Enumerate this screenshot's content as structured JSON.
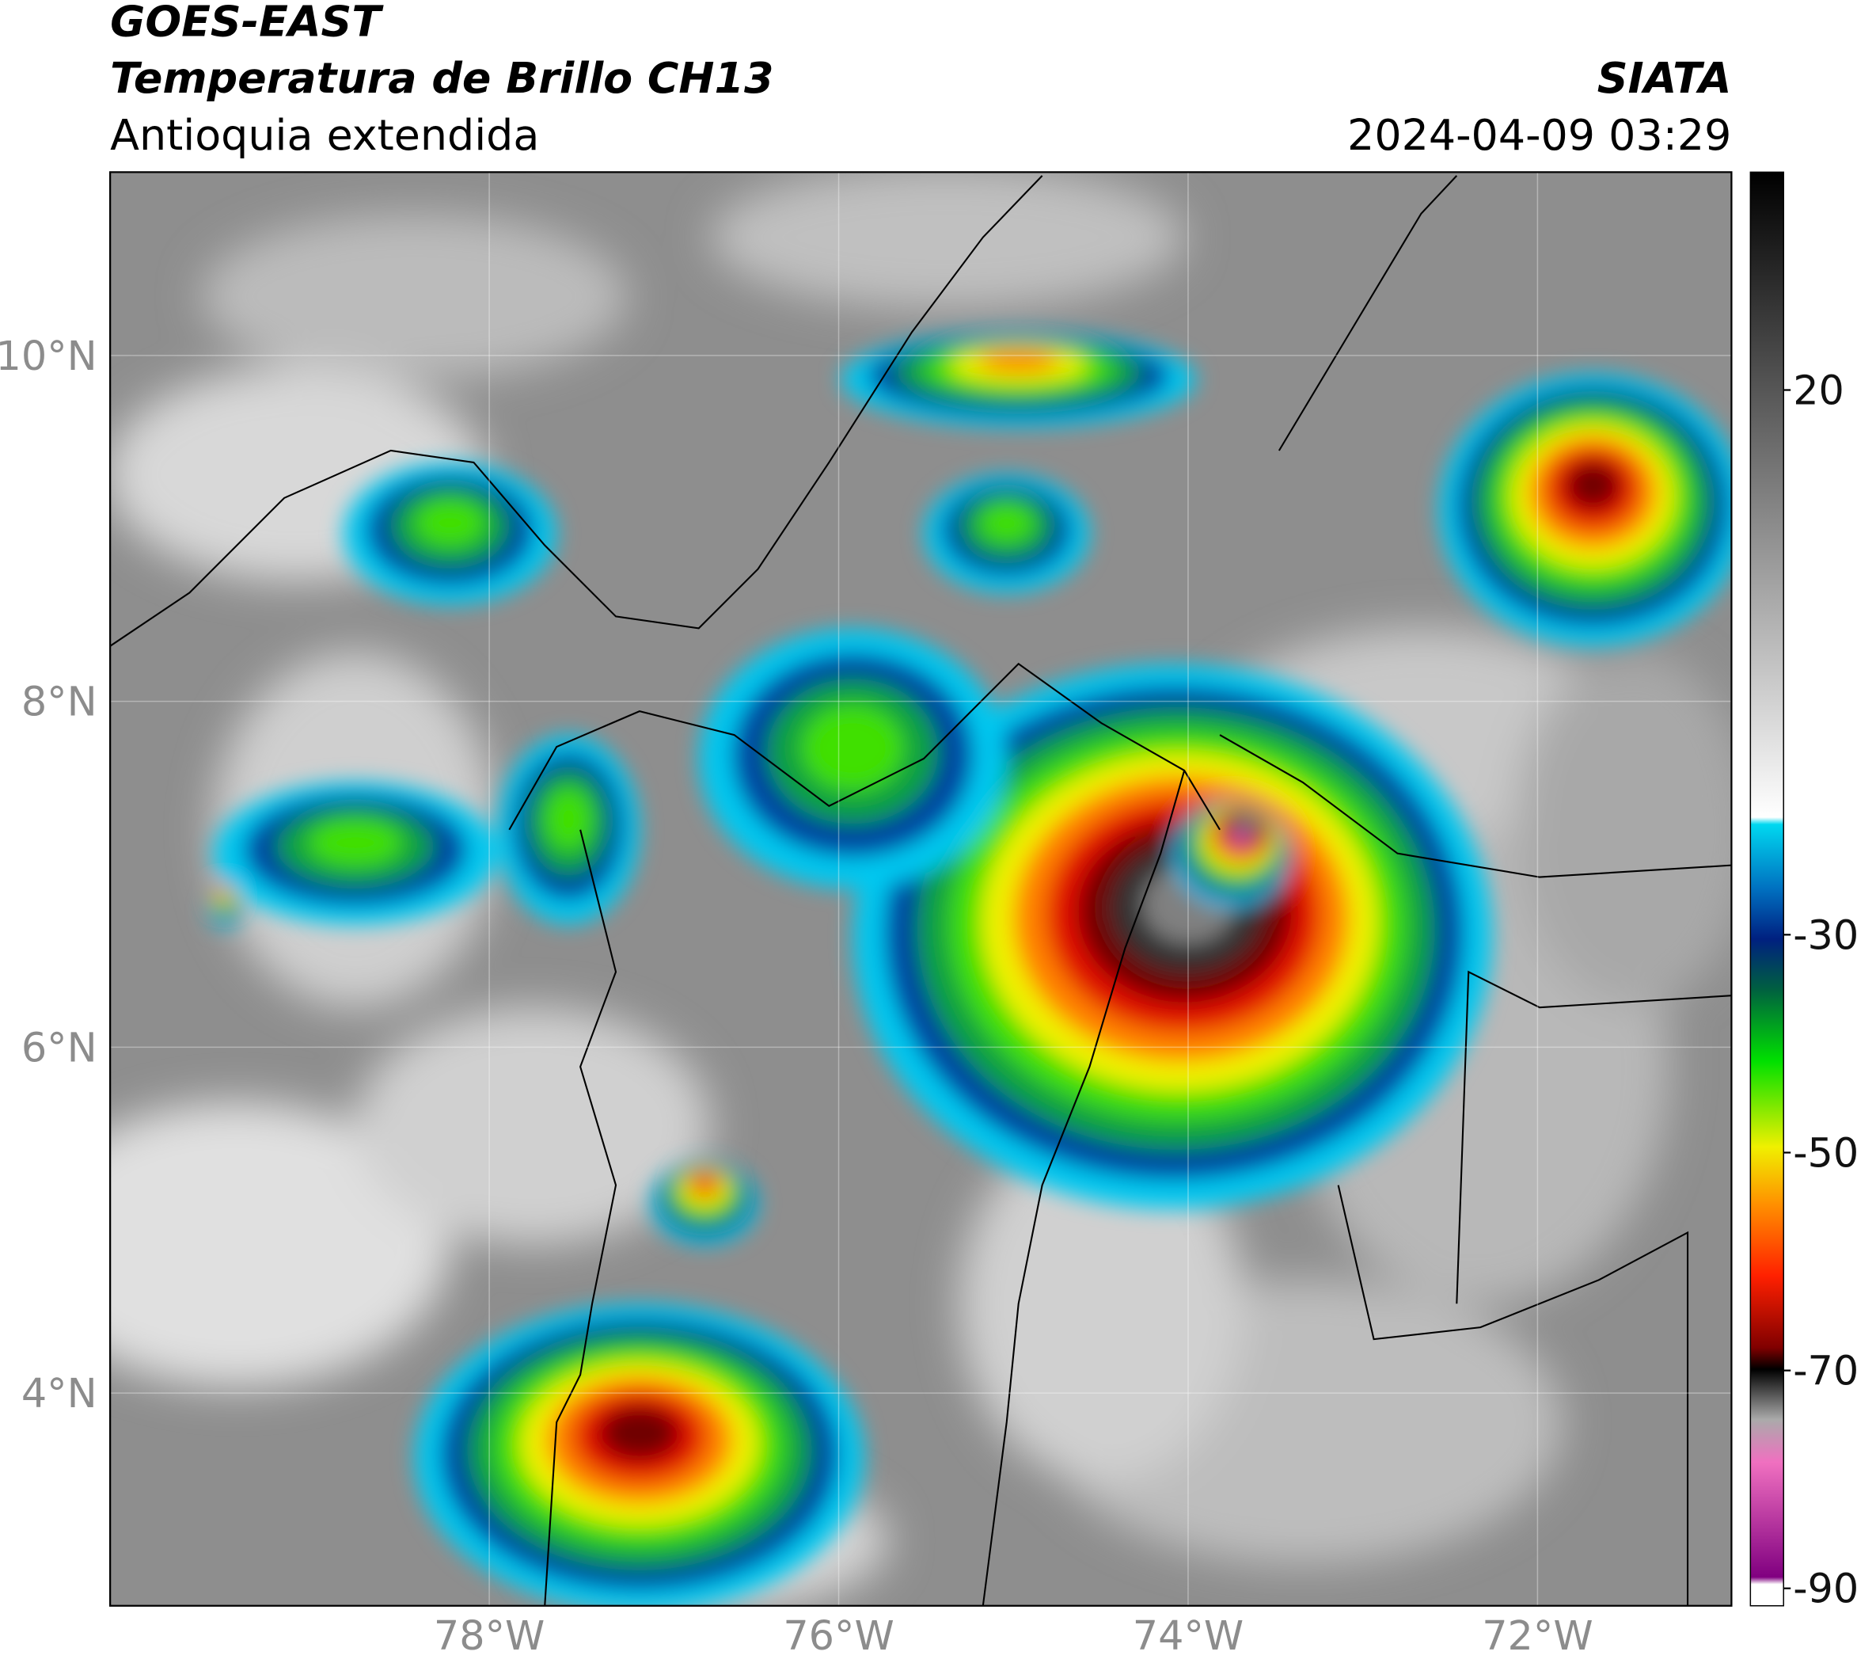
{
  "header": {
    "source": "GOES-EAST",
    "title": "Temperatura de Brillo CH13",
    "region": "Antioquia extendida",
    "org": "SIATA",
    "datetime": "2024-04-09 03:29"
  },
  "map": {
    "xlim": [
      -80.17,
      -70.89
    ],
    "ylim": [
      2.77,
      11.06
    ],
    "xticks": [
      {
        "value": -78,
        "label": "78°W"
      },
      {
        "value": -76,
        "label": "76°W"
      },
      {
        "value": -74,
        "label": "74°W"
      },
      {
        "value": -72,
        "label": "72°W"
      }
    ],
    "yticks": [
      {
        "value": 10,
        "label": "10°N"
      },
      {
        "value": 8,
        "label": "8°N"
      },
      {
        "value": 6,
        "label": "6°N"
      },
      {
        "value": 4,
        "label": "4°N"
      }
    ]
  },
  "colorbar": {
    "lim": [
      -91.6,
      40
    ],
    "ticks": [
      20,
      -30,
      -50,
      -70,
      -90
    ]
  }
}
